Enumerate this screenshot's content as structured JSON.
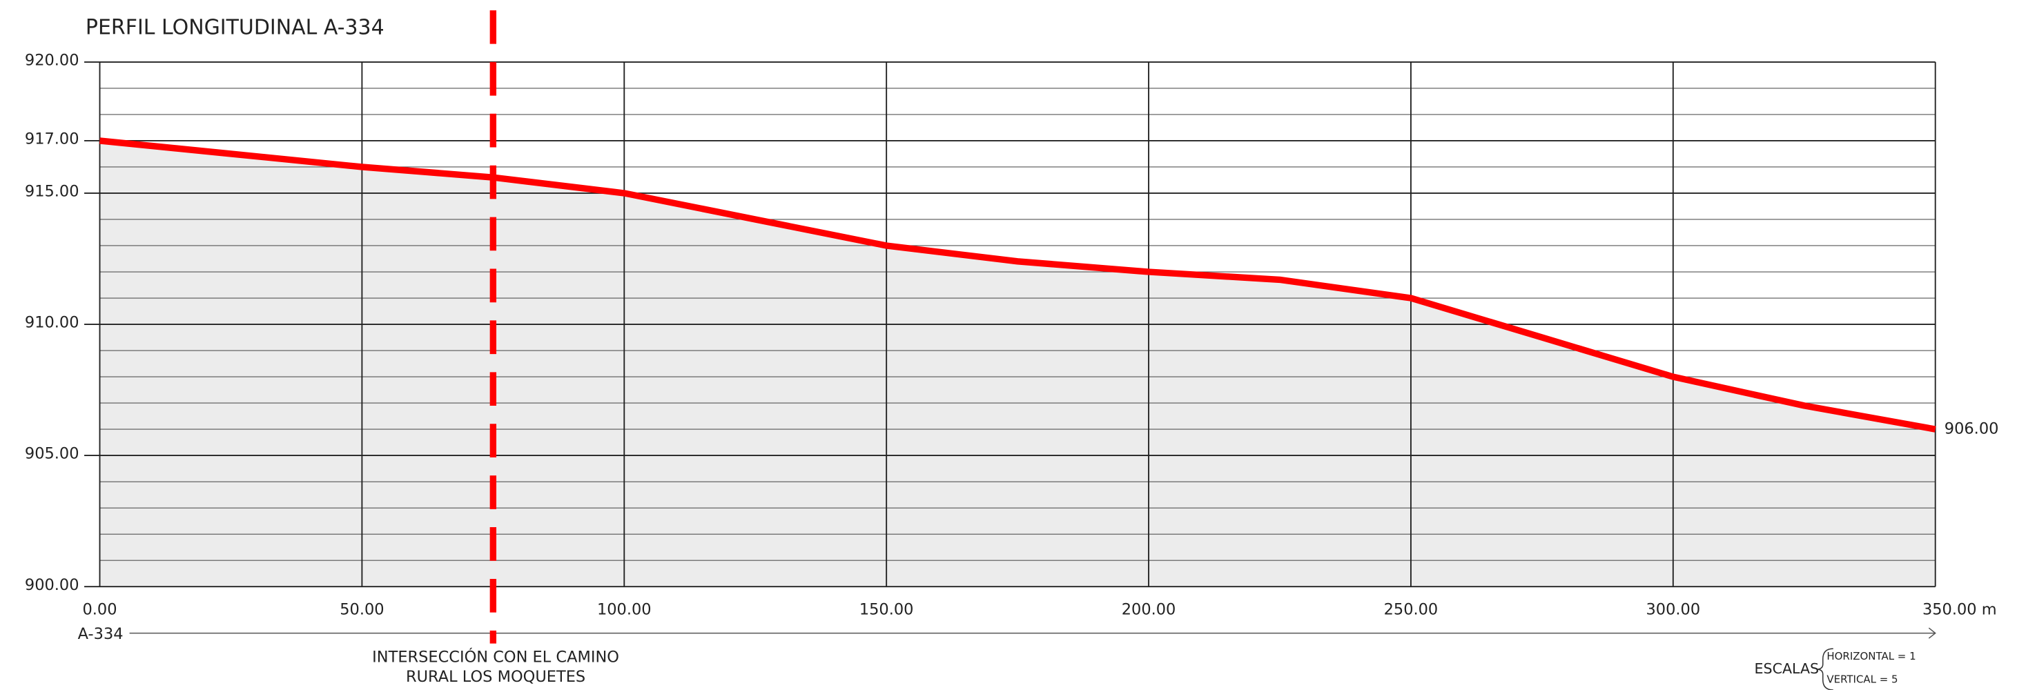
{
  "chart_data": {
    "type": "line",
    "title": "PERFIL LONGITUDINAL A-334",
    "x": [
      0,
      25,
      50,
      75,
      100,
      125,
      150,
      175,
      200,
      225,
      250,
      275,
      300,
      325,
      350
    ],
    "series": [
      {
        "name": "A-334",
        "color": "#ff0000",
        "values": [
          917,
          916.5,
          916,
          915.6,
          915,
          914,
          913,
          912.4,
          912,
          911.7,
          911,
          909.5,
          908,
          906.9,
          906
        ]
      }
    ],
    "end_value_label": "906.00",
    "xlim": [
      0,
      350
    ],
    "ylim": [
      900,
      920
    ],
    "xticks": [
      {
        "value": 0,
        "label": "0.00"
      },
      {
        "value": 50,
        "label": "50.00"
      },
      {
        "value": 100,
        "label": "100.00"
      },
      {
        "value": 150,
        "label": "150.00"
      },
      {
        "value": 200,
        "label": "200.00"
      },
      {
        "value": 250,
        "label": "250.00"
      },
      {
        "value": 300,
        "label": "300.00"
      },
      {
        "value": 350,
        "label": "350.00 m"
      }
    ],
    "yticks": [
      {
        "value": 900,
        "label": "900.00"
      },
      {
        "value": 905,
        "label": "905.00"
      },
      {
        "value": 910,
        "label": "910.00"
      },
      {
        "value": 915,
        "label": "915.00"
      },
      {
        "value": 917,
        "label": "917.00"
      },
      {
        "value": 920,
        "label": "920.00"
      }
    ],
    "y_minor_step": 1,
    "grid": true,
    "fill_color": "#ececec",
    "road_axis_label": "A-334",
    "annotation": {
      "x": 75,
      "color": "#ff0000",
      "lines": [
        "INTERSECCIÓN CON EL CAMINO",
        "RURAL LOS MOQUETES"
      ]
    },
    "scales": {
      "title": "ESCALAS",
      "horizontal": "HORIZONTAL =   1",
      "vertical": "VERTICAL       = 5"
    }
  }
}
